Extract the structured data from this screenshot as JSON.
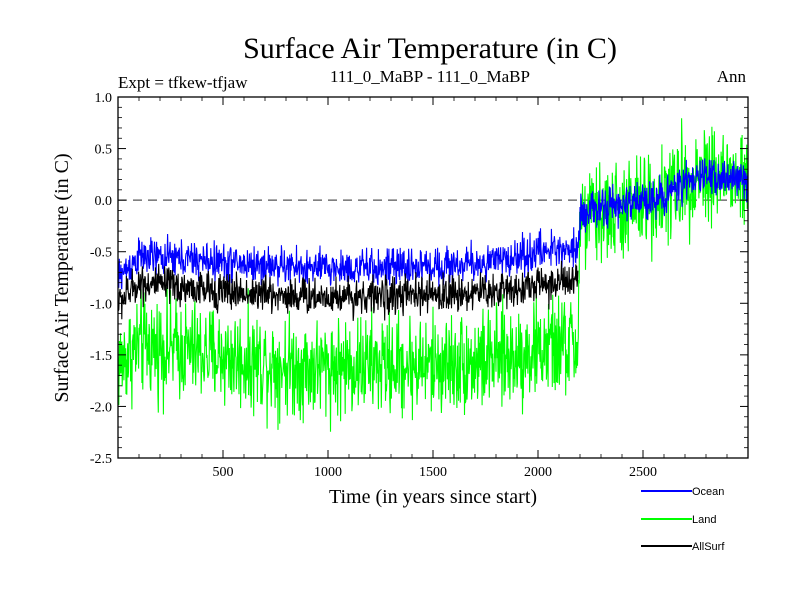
{
  "header": {
    "title": "Surface Air Temperature (in C)",
    "left_label": "Expt = tfkew-tfjaw",
    "center_label": "111_0_MaBP - 111_0_MaBP",
    "right_label": "Ann"
  },
  "chart_data": {
    "type": "line",
    "title": "Surface Air Temperature (in C)",
    "xlabel": "Time (in years since start)",
    "ylabel": "Surface Air Temperature (in C)",
    "xlim": [
      0,
      3000
    ],
    "ylim": [
      -2.5,
      1.0
    ],
    "x_ticks": [
      500,
      1000,
      1500,
      2000,
      2500
    ],
    "y_ticks": [
      -2.5,
      -2.0,
      -1.5,
      -1.0,
      -0.5,
      0.0,
      0.5,
      1.0
    ],
    "y_tick_labels": [
      "-2.5",
      "-2.0",
      "-1.5",
      "-1.0",
      "-0.5",
      "0.0",
      "0.5",
      "1.0"
    ],
    "reference_line": {
      "y": 0.0,
      "style": "dashed"
    },
    "legend_position": "bottom-right, below plot",
    "series": [
      {
        "name": "Ocean",
        "color": "#0000ff",
        "noise": 0.09,
        "x": [
          0,
          100,
          300,
          600,
          900,
          1200,
          1500,
          1800,
          2000,
          2190,
          2200,
          2400,
          2600,
          2800,
          3000
        ],
        "y": [
          -0.75,
          -0.55,
          -0.57,
          -0.62,
          -0.66,
          -0.66,
          -0.64,
          -0.6,
          -0.5,
          -0.45,
          -0.12,
          -0.05,
          0.05,
          0.25,
          0.18
        ]
      },
      {
        "name": "Land",
        "color": "#00ff00",
        "noise": 0.24,
        "x": [
          0,
          100,
          300,
          600,
          900,
          1200,
          1500,
          1800,
          2000,
          2190,
          2200,
          2400,
          2600,
          2800,
          3000
        ],
        "y": [
          -1.6,
          -1.4,
          -1.45,
          -1.55,
          -1.62,
          -1.6,
          -1.6,
          -1.55,
          -1.45,
          -1.4,
          -0.2,
          -0.1,
          0.05,
          0.3,
          0.15
        ]
      },
      {
        "name": "AllSurf",
        "color": "#000000",
        "noise": 0.09,
        "x": [
          0,
          100,
          300,
          600,
          900,
          1200,
          1500,
          1800,
          2000,
          2190
        ],
        "y": [
          -1.0,
          -0.8,
          -0.85,
          -0.9,
          -0.93,
          -0.93,
          -0.92,
          -0.88,
          -0.82,
          -0.78
        ]
      }
    ]
  }
}
